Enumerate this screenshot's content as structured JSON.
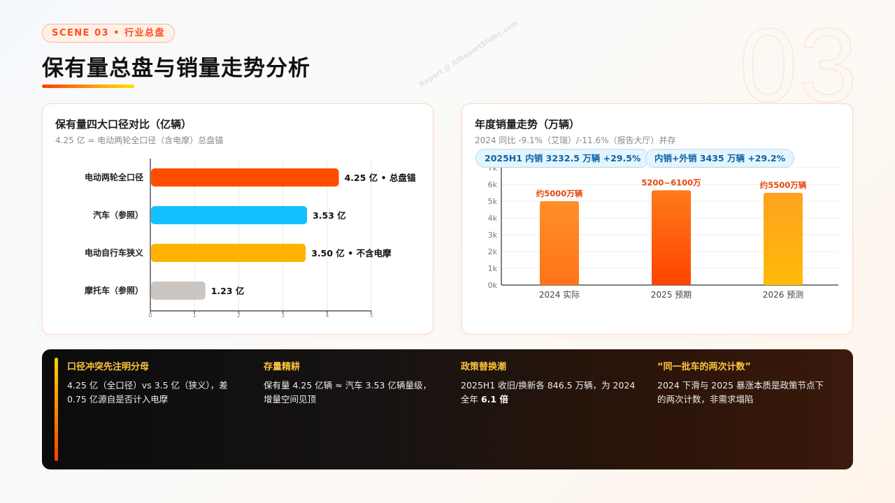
{
  "header": {
    "scene_label": "SCENE 03 • 行业总盘",
    "title": "保有量总盘与销量走势分析",
    "big_number": "03",
    "watermark": "Report @ AIReportSlides.com"
  },
  "left_card": {
    "title": "保有量四大口径对比（亿辆）",
    "subtitle": "4.25 亿 = 电动两轮全口径（含电摩）总盘锚"
  },
  "right_card": {
    "title": "年度销量走势（万辆）",
    "subtitle": "2024 同比 -9.1%（艾瑞）/-11.6%（报告大厅）并存",
    "pills": [
      "2025H1 内销 3232.5 万辆 +29.5%",
      "内销+外销 3435 万辆 +29.2%"
    ]
  },
  "chart_data": [
    {
      "type": "bar",
      "orientation": "horizontal",
      "title": "保有量四大口径对比（亿辆）",
      "categories": [
        "电动两轮全口径",
        "汽车（参照）",
        "电动自行车狭义",
        "摩托车（参照）"
      ],
      "values": [
        4.25,
        3.53,
        3.5,
        1.23
      ],
      "data_labels": [
        "4.25 亿 • 总盘锚",
        "3.53 亿",
        "3.50 亿 • 不含电摩",
        "1.23 亿"
      ],
      "colors": [
        "#ff4d00",
        "#14c1ff",
        "#ffb300",
        "#cbc6c2"
      ],
      "xlim": [
        0,
        5
      ],
      "xticks": [
        "0",
        "1",
        "2",
        "3",
        "4",
        "5"
      ],
      "grid": true
    },
    {
      "type": "bar",
      "orientation": "vertical",
      "title": "年度销量走势（万辆）",
      "categories": [
        "2024 实际",
        "2025 预期",
        "2026 预测"
      ],
      "values": [
        5000,
        5650,
        5500
      ],
      "range_2025": [
        5200,
        6100
      ],
      "data_labels": [
        "约5000万辆",
        "5200~6100万",
        "约5500万辆"
      ],
      "ylim": [
        0,
        7000
      ],
      "yticks": [
        "0k",
        "1k",
        "2k",
        "3k",
        "4k",
        "5k",
        "6k",
        "7k"
      ],
      "grid": true
    }
  ],
  "insights": [
    {
      "title": "口径冲突先注明分母",
      "body": "4.25 亿（全口径）vs 3.5 亿（狭义），差 0.75 亿源自是否计入电摩",
      "highlight": ""
    },
    {
      "title": "存量精耕",
      "body": "保有量 4.25 亿辆 ≈ 汽车 3.53 亿辆量级，增量空间见顶",
      "highlight": ""
    },
    {
      "title": "政策替换潮",
      "body": "2025H1 收旧/换新各 846.5 万辆，为 2024 全年 ",
      "highlight": "6.1 倍"
    },
    {
      "title": "“同一批车的两次计数”",
      "body": "2024 下滑与 2025 暴涨本质是政策节点下的两次计数，非需求塌陷",
      "highlight": ""
    }
  ]
}
